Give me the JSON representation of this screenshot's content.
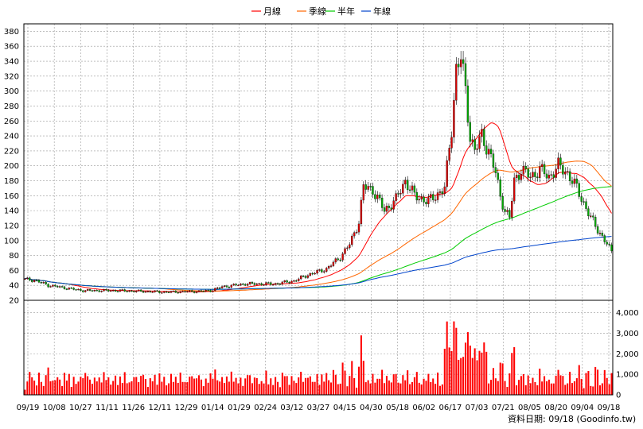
{
  "chart_data": {
    "type": "candlestick+volume",
    "legend": [
      {
        "label": "月線",
        "color": "#ff0000"
      },
      {
        "label": "季線",
        "color": "#ff6600"
      },
      {
        "label": "半年",
        "color": "#00cc00"
      },
      {
        "label": "年線",
        "color": "#0044cc"
      }
    ],
    "price_axis": {
      "min": 20,
      "max": 390,
      "ticks": [
        20,
        40,
        60,
        80,
        100,
        120,
        140,
        160,
        180,
        200,
        220,
        240,
        260,
        280,
        300,
        320,
        340,
        360,
        380
      ]
    },
    "volume_axis": {
      "min": 0,
      "max": 4600,
      "ticks": [
        0,
        1000,
        2000,
        3000,
        4000
      ],
      "tick_labels": [
        "0",
        "1,000",
        "2,000",
        "3,000",
        "4,000"
      ]
    },
    "x_labels": [
      "09/19",
      "10/08",
      "10/27",
      "11/11",
      "11/26",
      "12/11",
      "12/29",
      "01/14",
      "01/29",
      "02/24",
      "03/12",
      "03/27",
      "04/15",
      "04/30",
      "05/18",
      "06/02",
      "06/17",
      "07/03",
      "07/21",
      "08/05",
      "08/20",
      "09/04",
      "09/18"
    ],
    "n_bars": 254,
    "close_anchors": [
      [
        0,
        48
      ],
      [
        4,
        47
      ],
      [
        10,
        40
      ],
      [
        25,
        33
      ],
      [
        40,
        33
      ],
      [
        60,
        31
      ],
      [
        75,
        32
      ],
      [
        80,
        33
      ],
      [
        85,
        38
      ],
      [
        95,
        42
      ],
      [
        108,
        42
      ],
      [
        116,
        46
      ],
      [
        122,
        54
      ],
      [
        130,
        62
      ],
      [
        136,
        78
      ],
      [
        140,
        95
      ],
      [
        144,
        125
      ],
      [
        146,
        172
      ],
      [
        150,
        168
      ],
      [
        155,
        140
      ],
      [
        160,
        155
      ],
      [
        164,
        180
      ],
      [
        168,
        160
      ],
      [
        174,
        152
      ],
      [
        177,
        160
      ],
      [
        181,
        170
      ],
      [
        184,
        250
      ],
      [
        186,
        330
      ],
      [
        188,
        345
      ],
      [
        190,
        300
      ],
      [
        192,
        240
      ],
      [
        194,
        220
      ],
      [
        197,
        240
      ],
      [
        200,
        220
      ],
      [
        203,
        190
      ],
      [
        205,
        160
      ],
      [
        207,
        140
      ],
      [
        209,
        130
      ],
      [
        211,
        180
      ],
      [
        214,
        195
      ],
      [
        218,
        185
      ],
      [
        222,
        195
      ],
      [
        226,
        185
      ],
      [
        230,
        200
      ],
      [
        234,
        190
      ],
      [
        238,
        170
      ],
      [
        241,
        150
      ],
      [
        244,
        130
      ],
      [
        248,
        110
      ],
      [
        251,
        95
      ],
      [
        253,
        85
      ]
    ],
    "series_colors": {
      "up": "#dd0000",
      "down": "#00aa00",
      "volume": "#ff0000",
      "grid": "#999999"
    },
    "footer": "資料日期: 09/18 (Goodinfo.tw)"
  }
}
